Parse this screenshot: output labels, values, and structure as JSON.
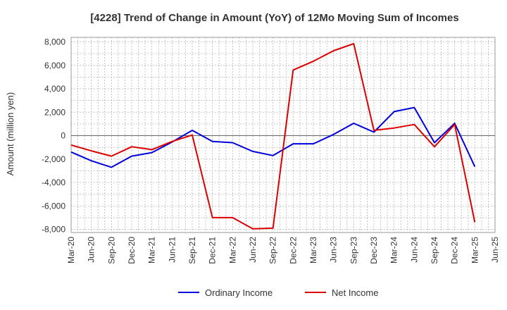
{
  "chart_data": {
    "type": "line",
    "title": "[4228]  Trend of Change in Amount (YoY) of 12Mo Moving Sum of Incomes",
    "ylabel": "Amount (million yen)",
    "xlabel": "",
    "ylim": [
      -8000,
      8000
    ],
    "yticks": [
      8000,
      6000,
      4000,
      2000,
      0,
      -2000,
      -4000,
      -6000,
      -8000
    ],
    "ytick_labels": [
      "8,000",
      "6,000",
      "4,000",
      "2,000",
      "0",
      "-2,000",
      "-4,000",
      "-6,000",
      "-8,000"
    ],
    "categories": [
      "Mar-20",
      "Jun-20",
      "Sep-20",
      "Dec-20",
      "Mar-21",
      "Jun-21",
      "Sep-21",
      "Dec-21",
      "Mar-22",
      "Jun-22",
      "Sep-22",
      "Dec-22",
      "Mar-23",
      "Jun-23",
      "Sep-23",
      "Dec-23",
      "Mar-24",
      "Jun-24",
      "Sep-24",
      "Dec-24",
      "Mar-25",
      "Jun-25"
    ],
    "grid": true,
    "legend_position": "bottom",
    "series": [
      {
        "name": "Ordinary Income",
        "color": "#0000dd",
        "values": [
          -1400,
          -2150,
          -2700,
          -1750,
          -1450,
          -550,
          450,
          -500,
          -600,
          -1350,
          -1700,
          -700,
          -700,
          100,
          1050,
          300,
          2050,
          2400,
          -600,
          1050,
          -2650,
          null
        ]
      },
      {
        "name": "Net Income",
        "color": "#dd0000",
        "values": [
          -800,
          -1300,
          -1750,
          -950,
          -1200,
          -500,
          50,
          -7000,
          -7000,
          -7950,
          -7900,
          5600,
          6350,
          7250,
          7850,
          450,
          650,
          950,
          -950,
          950,
          -7400,
          null
        ]
      }
    ]
  }
}
